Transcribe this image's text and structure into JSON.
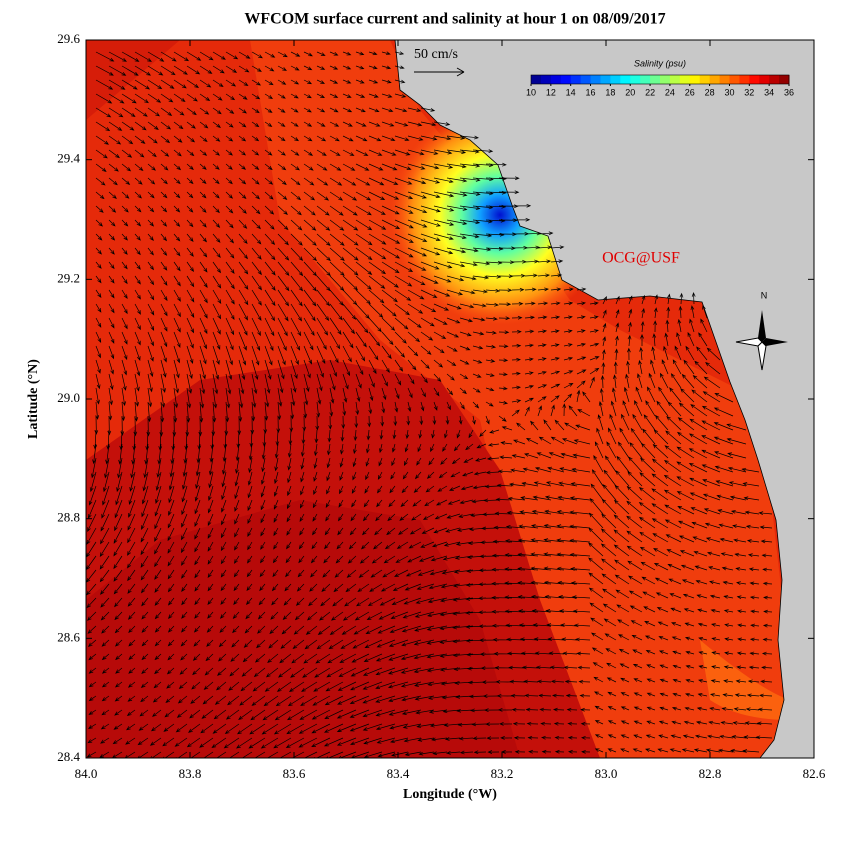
{
  "chart_data": {
    "type": "map",
    "title": "WFCOM surface current and salinity at hour 1 on 08/09/2017",
    "x_label": "Longitude (°W)",
    "y_label": "Latitude (°N)",
    "xlim": [
      84.0,
      82.6
    ],
    "xticks": [
      {
        "value": 84,
        "label": "84.0"
      },
      83.8,
      83.6,
      83.4,
      83.2,
      {
        "value": 83,
        "label": "83.0"
      },
      82.8,
      82.6
    ],
    "ylim": [
      28.4,
      29.6
    ],
    "yticks": [
      28.4,
      28.6,
      28.8,
      {
        "value": 29,
        "label": "29.0"
      },
      29.2,
      29.4,
      29.6
    ],
    "colorbar": {
      "title": "Salinity (psu)",
      "clim": [
        10,
        36
      ],
      "ticks": [
        10,
        12,
        14,
        16,
        18,
        20,
        22,
        24,
        26,
        28,
        30,
        32,
        34,
        36
      ]
    },
    "vector_scale_label": "50 cm/s",
    "annotation": "OCG@USF",
    "compass_label": "N"
  }
}
